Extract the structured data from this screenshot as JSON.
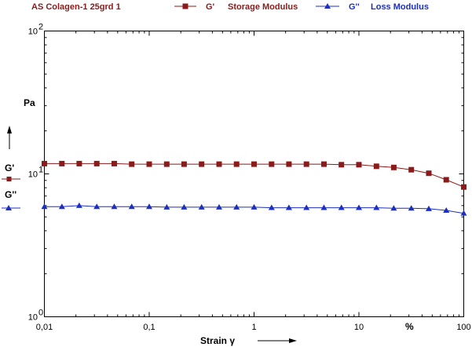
{
  "header": {
    "sample_title": "AS Colagen-1 25grd 1",
    "legend": [
      {
        "symbol": "G'",
        "label": "Storage Modulus",
        "color": "#8b1a1a"
      },
      {
        "symbol": "G''",
        "label": "Loss Modulus",
        "color": "#1c2fbf"
      }
    ]
  },
  "chart_data": {
    "type": "line",
    "title": "AS Colagen-1 25grd 1",
    "xlabel": "Strain γ",
    "x_unit": "%",
    "ylabel": "Pa",
    "x_scale": "log",
    "y_scale": "log",
    "xlim": [
      0.01,
      100
    ],
    "ylim": [
      1,
      100
    ],
    "grid": false,
    "legend_position": "top",
    "x_ticks": [
      {
        "value": 0.01,
        "label": "0,01"
      },
      {
        "value": 0.1,
        "label": "0,1"
      },
      {
        "value": 1,
        "label": "1"
      },
      {
        "value": 10,
        "label": "10"
      },
      {
        "value": 100,
        "label": "100"
      }
    ],
    "y_ticks": [
      {
        "value": 1,
        "base": "10",
        "exp": "0"
      },
      {
        "value": 10,
        "base": "10",
        "exp": "1"
      },
      {
        "value": 100,
        "base": "10",
        "exp": "2"
      }
    ],
    "y_axis_series_labels": [
      "G'",
      "G''"
    ],
    "x": [
      0.01,
      0.0147,
      0.0215,
      0.0316,
      0.0464,
      0.0681,
      0.1,
      0.147,
      0.215,
      0.316,
      0.464,
      0.681,
      1,
      1.47,
      2.15,
      3.16,
      4.64,
      6.81,
      10,
      14.7,
      21.5,
      31.6,
      46.4,
      68.1,
      100
    ],
    "series": [
      {
        "name": "G' Storage Modulus",
        "color": "#8b1a1a",
        "marker": "square",
        "values": [
          11.8,
          11.8,
          11.8,
          11.8,
          11.8,
          11.7,
          11.7,
          11.7,
          11.7,
          11.7,
          11.7,
          11.7,
          11.7,
          11.7,
          11.7,
          11.7,
          11.7,
          11.6,
          11.6,
          11.3,
          11.1,
          10.7,
          10.1,
          9.1,
          8.1
        ]
      },
      {
        "name": "G'' Loss Modulus",
        "color": "#1c2fbf",
        "marker": "triangle",
        "values": [
          5.9,
          5.9,
          6.0,
          5.9,
          5.9,
          5.9,
          5.9,
          5.85,
          5.85,
          5.85,
          5.85,
          5.85,
          5.85,
          5.8,
          5.8,
          5.8,
          5.8,
          5.8,
          5.8,
          5.8,
          5.75,
          5.75,
          5.7,
          5.55,
          5.3
        ]
      }
    ]
  }
}
